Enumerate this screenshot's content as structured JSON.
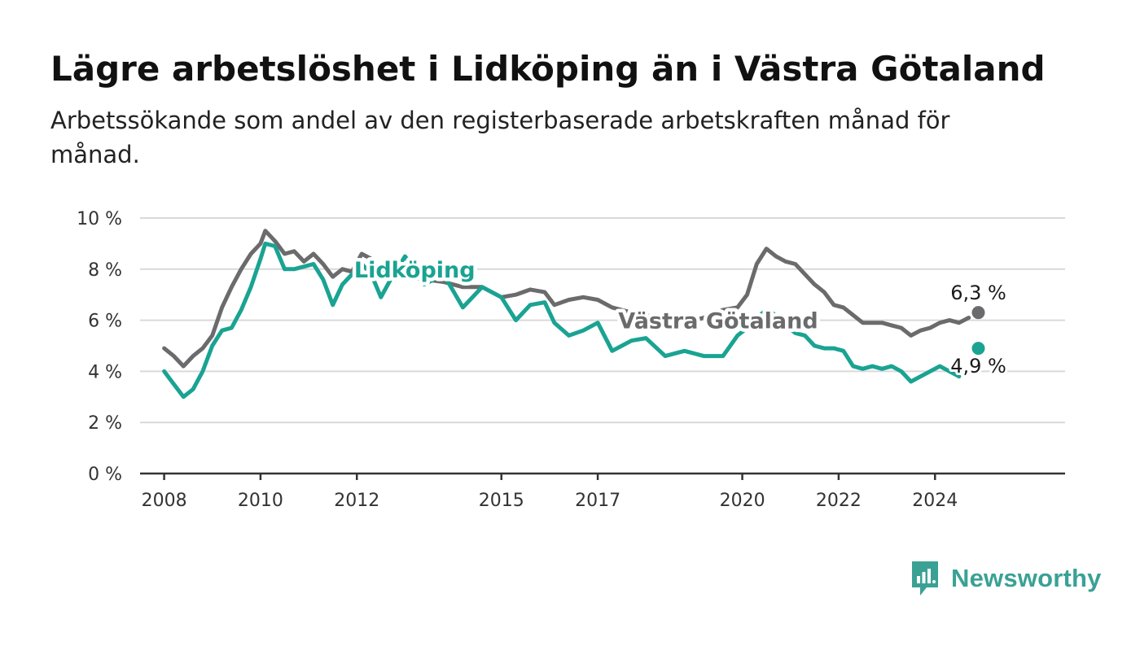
{
  "header": {
    "title": "Lägre arbetslöshet i Lidköping än i Västra Götaland",
    "subtitle": "Arbetssökande som andel av den registerbaserade arbetskraften månad för månad."
  },
  "brand": {
    "name": "Newsworthy",
    "icon": "newsworthy-logo-icon",
    "color": "#3aa195"
  },
  "chart_data": {
    "type": "line",
    "title": "Lägre arbetslöshet i Lidköping än i Västra Götaland",
    "subtitle": "Arbetssökande som andel av den registerbaserade arbetskraften månad för månad.",
    "xlabel": "",
    "ylabel": "",
    "ylim": [
      0,
      10
    ],
    "xlim": [
      2007.5,
      2026.7
    ],
    "yticks": [
      "0 %",
      "2 %",
      "4 %",
      "6 %",
      "8 %",
      "10 %"
    ],
    "xticks": [
      "2008",
      "2010",
      "2012",
      "2015",
      "2017",
      "2020",
      "2022",
      "2024"
    ],
    "grid": true,
    "series": [
      {
        "name": "Västra Götaland",
        "color": "#6b6a6c",
        "end_label": "6,3 %",
        "points": [
          [
            2008.0,
            4.9
          ],
          [
            2008.2,
            4.6
          ],
          [
            2008.4,
            4.2
          ],
          [
            2008.6,
            4.6
          ],
          [
            2008.8,
            4.9
          ],
          [
            2009.0,
            5.4
          ],
          [
            2009.2,
            6.5
          ],
          [
            2009.4,
            7.3
          ],
          [
            2009.6,
            8.0
          ],
          [
            2009.8,
            8.6
          ],
          [
            2010.0,
            9.0
          ],
          [
            2010.1,
            9.5
          ],
          [
            2010.3,
            9.1
          ],
          [
            2010.5,
            8.6
          ],
          [
            2010.7,
            8.7
          ],
          [
            2010.9,
            8.3
          ],
          [
            2011.1,
            8.6
          ],
          [
            2011.3,
            8.2
          ],
          [
            2011.5,
            7.7
          ],
          [
            2011.7,
            8.0
          ],
          [
            2011.9,
            7.9
          ],
          [
            2012.1,
            8.6
          ],
          [
            2012.3,
            8.4
          ],
          [
            2012.5,
            7.8
          ],
          [
            2012.7,
            7.9
          ],
          [
            2013.0,
            7.7
          ],
          [
            2013.4,
            7.6
          ],
          [
            2013.8,
            7.5
          ],
          [
            2014.2,
            7.3
          ],
          [
            2014.6,
            7.3
          ],
          [
            2015.0,
            6.9
          ],
          [
            2015.3,
            7.0
          ],
          [
            2015.6,
            7.2
          ],
          [
            2015.9,
            7.1
          ],
          [
            2016.1,
            6.6
          ],
          [
            2016.4,
            6.8
          ],
          [
            2016.7,
            6.9
          ],
          [
            2017.0,
            6.8
          ],
          [
            2017.3,
            6.5
          ],
          [
            2017.7,
            6.3
          ],
          [
            2018.0,
            6.2
          ],
          [
            2018.4,
            6.0
          ],
          [
            2018.8,
            5.9
          ],
          [
            2019.2,
            6.1
          ],
          [
            2019.6,
            6.4
          ],
          [
            2019.9,
            6.5
          ],
          [
            2020.1,
            7.0
          ],
          [
            2020.3,
            8.2
          ],
          [
            2020.5,
            8.8
          ],
          [
            2020.7,
            8.5
          ],
          [
            2020.9,
            8.3
          ],
          [
            2021.1,
            8.2
          ],
          [
            2021.3,
            7.8
          ],
          [
            2021.5,
            7.4
          ],
          [
            2021.7,
            7.1
          ],
          [
            2021.9,
            6.6
          ],
          [
            2022.1,
            6.5
          ],
          [
            2022.3,
            6.2
          ],
          [
            2022.5,
            5.9
          ],
          [
            2022.7,
            5.9
          ],
          [
            2022.9,
            5.9
          ],
          [
            2023.1,
            5.8
          ],
          [
            2023.3,
            5.7
          ],
          [
            2023.5,
            5.4
          ],
          [
            2023.7,
            5.6
          ],
          [
            2023.9,
            5.7
          ],
          [
            2024.1,
            5.9
          ],
          [
            2024.3,
            6.0
          ],
          [
            2024.5,
            5.9
          ],
          [
            2024.7,
            6.1
          ],
          [
            2024.9,
            6.3
          ]
        ]
      },
      {
        "name": "Lidköping",
        "color": "#1aa392",
        "end_label": "4,9 %",
        "points": [
          [
            2008.0,
            4.0
          ],
          [
            2008.2,
            3.5
          ],
          [
            2008.4,
            3.0
          ],
          [
            2008.6,
            3.3
          ],
          [
            2008.8,
            4.0
          ],
          [
            2009.0,
            5.0
          ],
          [
            2009.2,
            5.6
          ],
          [
            2009.4,
            5.7
          ],
          [
            2009.6,
            6.4
          ],
          [
            2009.8,
            7.3
          ],
          [
            2010.0,
            8.4
          ],
          [
            2010.1,
            9.0
          ],
          [
            2010.3,
            8.9
          ],
          [
            2010.5,
            8.0
          ],
          [
            2010.7,
            8.0
          ],
          [
            2010.9,
            8.1
          ],
          [
            2011.1,
            8.2
          ],
          [
            2011.3,
            7.6
          ],
          [
            2011.5,
            6.6
          ],
          [
            2011.7,
            7.4
          ],
          [
            2011.9,
            7.8
          ],
          [
            2012.1,
            8.2
          ],
          [
            2012.3,
            7.8
          ],
          [
            2012.5,
            6.9
          ],
          [
            2012.7,
            7.6
          ],
          [
            2013.0,
            8.5
          ],
          [
            2013.4,
            7.4
          ],
          [
            2013.8,
            7.8
          ],
          [
            2014.2,
            6.5
          ],
          [
            2014.6,
            7.3
          ],
          [
            2015.0,
            6.9
          ],
          [
            2015.3,
            6.0
          ],
          [
            2015.6,
            6.6
          ],
          [
            2015.9,
            6.7
          ],
          [
            2016.1,
            5.9
          ],
          [
            2016.4,
            5.4
          ],
          [
            2016.7,
            5.6
          ],
          [
            2017.0,
            5.9
          ],
          [
            2017.3,
            4.8
          ],
          [
            2017.7,
            5.2
          ],
          [
            2018.0,
            5.3
          ],
          [
            2018.4,
            4.6
          ],
          [
            2018.8,
            4.8
          ],
          [
            2019.2,
            4.6
          ],
          [
            2019.6,
            4.6
          ],
          [
            2019.9,
            5.4
          ],
          [
            2020.1,
            5.7
          ],
          [
            2020.3,
            6.1
          ],
          [
            2020.5,
            6.4
          ],
          [
            2020.7,
            6.2
          ],
          [
            2020.9,
            5.8
          ],
          [
            2021.1,
            5.5
          ],
          [
            2021.3,
            5.4
          ],
          [
            2021.5,
            5.0
          ],
          [
            2021.7,
            4.9
          ],
          [
            2021.9,
            4.9
          ],
          [
            2022.1,
            4.8
          ],
          [
            2022.3,
            4.2
          ],
          [
            2022.5,
            4.1
          ],
          [
            2022.7,
            4.2
          ],
          [
            2022.9,
            4.1
          ],
          [
            2023.1,
            4.2
          ],
          [
            2023.3,
            4.0
          ],
          [
            2023.5,
            3.6
          ],
          [
            2023.7,
            3.8
          ],
          [
            2023.9,
            4.0
          ],
          [
            2024.1,
            4.2
          ],
          [
            2024.3,
            4.0
          ],
          [
            2024.5,
            3.8
          ],
          [
            2024.9,
            4.9
          ]
        ]
      }
    ],
    "annotations": [
      {
        "text": "Lidköping",
        "series": "Lidköping",
        "at": [
          2013.2,
          8.0
        ]
      },
      {
        "text": "Västra Götaland",
        "series": "Västra Götaland",
        "at": [
          2019.5,
          6.0
        ]
      }
    ]
  }
}
